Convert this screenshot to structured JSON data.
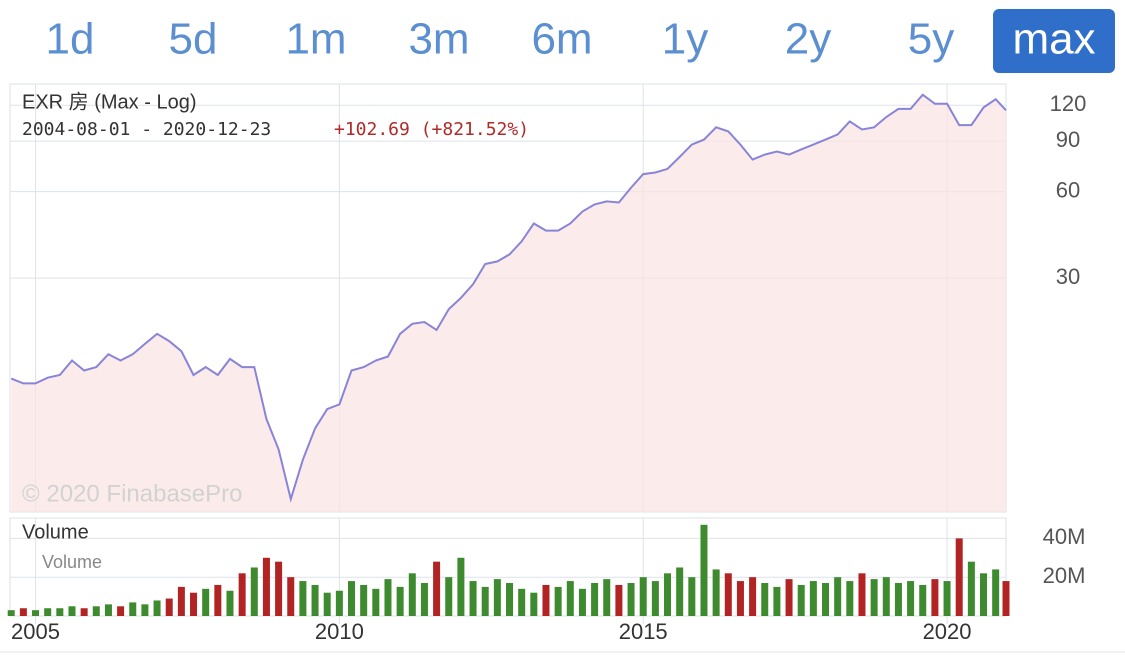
{
  "buttons": [
    {
      "label": "1d"
    },
    {
      "label": "5d"
    },
    {
      "label": "1m"
    },
    {
      "label": "3m"
    },
    {
      "label": "6m"
    },
    {
      "label": "1y"
    },
    {
      "label": "2y"
    },
    {
      "label": "5y"
    },
    {
      "label": "max",
      "active": true
    }
  ],
  "chart_data": [
    {
      "type": "line",
      "title": "EXR 房 (Max - Log)",
      "subtitle": "2004-08-01 - 2020-12-23",
      "change": "+102.69 (+821.52%)",
      "watermark": "© 2020 FinabasePro",
      "x": [
        2004.6,
        2004.8,
        2005.0,
        2005.2,
        2005.4,
        2005.6,
        2005.8,
        2006.0,
        2006.2,
        2006.4,
        2006.6,
        2006.8,
        2007.0,
        2007.2,
        2007.4,
        2007.6,
        2007.8,
        2008.0,
        2008.2,
        2008.4,
        2008.6,
        2008.8,
        2009.0,
        2009.2,
        2009.4,
        2009.6,
        2009.8,
        2010.0,
        2010.2,
        2010.4,
        2010.6,
        2010.8,
        2011.0,
        2011.2,
        2011.4,
        2011.6,
        2011.8,
        2012.0,
        2012.2,
        2012.4,
        2012.6,
        2012.8,
        2013.0,
        2013.2,
        2013.4,
        2013.6,
        2013.8,
        2014.0,
        2014.2,
        2014.4,
        2014.6,
        2014.8,
        2015.0,
        2015.2,
        2015.4,
        2015.6,
        2015.8,
        2016.0,
        2016.2,
        2016.4,
        2016.6,
        2016.8,
        2017.0,
        2017.2,
        2017.4,
        2017.6,
        2017.8,
        2018.0,
        2018.2,
        2018.4,
        2018.6,
        2018.8,
        2019.0,
        2019.2,
        2019.4,
        2019.6,
        2019.8,
        2020.0,
        2020.2,
        2020.4,
        2020.6,
        2020.8,
        2020.97
      ],
      "xlim": [
        2004.58,
        2020.97
      ],
      "xticks": [
        2005,
        2010,
        2015,
        2020
      ],
      "log_scale": true,
      "ylim": [
        4.6,
        140
      ],
      "yticks": [
        120,
        90,
        60,
        30
      ],
      "grid": true,
      "fill_color": "#fbe3e3",
      "series": [
        {
          "color": "#8884d8",
          "values": [
            13.4,
            12.9,
            12.9,
            13.5,
            13.8,
            15.5,
            14.3,
            14.7,
            16.3,
            15.5,
            16.3,
            17.7,
            19.2,
            18.1,
            16.7,
            13.8,
            14.7,
            13.8,
            15.7,
            14.7,
            14.7,
            9.7,
            7.6,
            5.1,
            7.0,
            9.0,
            10.5,
            10.9,
            14.3,
            14.7,
            15.5,
            16.0,
            19.2,
            20.8,
            21.1,
            19.8,
            23.4,
            25.6,
            28.6,
            33.6,
            34.3,
            36.3,
            40.3,
            46.5,
            43.9,
            43.9,
            46.5,
            51.2,
            54.2,
            55.5,
            55.0,
            62.0,
            69.1,
            70.0,
            72.0,
            79.3,
            87.5,
            91.1,
            100.5,
            97.3,
            87.5,
            77.6,
            80.8,
            82.8,
            80.8,
            84.2,
            87.5,
            91.1,
            95.0,
            105.4,
            98.8,
            100.5,
            109.2,
            116.5,
            116.5,
            130.6,
            121.4,
            121.4,
            102.3,
            102.3,
            117.8,
            125.9,
            115.2
          ]
        }
      ]
    },
    {
      "type": "bar",
      "title": "Volume",
      "label": "Volume",
      "up_color": "#3e8a2e",
      "down_color": "#b22424",
      "x": [
        2004.6,
        2004.8,
        2005.0,
        2005.2,
        2005.4,
        2005.6,
        2005.8,
        2006.0,
        2006.2,
        2006.4,
        2006.6,
        2006.8,
        2007.0,
        2007.2,
        2007.4,
        2007.6,
        2007.8,
        2008.0,
        2008.2,
        2008.4,
        2008.6,
        2008.8,
        2009.0,
        2009.2,
        2009.4,
        2009.6,
        2009.8,
        2010.0,
        2010.2,
        2010.4,
        2010.6,
        2010.8,
        2011.0,
        2011.2,
        2011.4,
        2011.6,
        2011.8,
        2012.0,
        2012.2,
        2012.4,
        2012.6,
        2012.8,
        2013.0,
        2013.2,
        2013.4,
        2013.6,
        2013.8,
        2014.0,
        2014.2,
        2014.4,
        2014.6,
        2014.8,
        2015.0,
        2015.2,
        2015.4,
        2015.6,
        2015.8,
        2016.0,
        2016.2,
        2016.4,
        2016.6,
        2016.8,
        2017.0,
        2017.2,
        2017.4,
        2017.6,
        2017.8,
        2018.0,
        2018.2,
        2018.4,
        2018.6,
        2018.8,
        2019.0,
        2019.2,
        2019.4,
        2019.6,
        2019.8,
        2020.0,
        2020.2,
        2020.4,
        2020.6,
        2020.8,
        2020.97
      ],
      "xlim": [
        2004.58,
        2020.97
      ],
      "xticks": [
        2005,
        2010,
        2015,
        2020
      ],
      "ylim": [
        0,
        50.5
      ],
      "yticks": [
        {
          "value": 40,
          "label": "40M"
        },
        {
          "value": 20,
          "label": "20M"
        }
      ],
      "values": [
        3,
        4,
        3,
        4,
        4,
        5,
        4,
        5,
        6,
        5,
        7,
        6,
        8,
        9,
        15,
        12,
        14,
        16,
        13,
        22,
        25,
        30,
        28,
        20,
        18,
        16,
        12,
        13,
        18,
        16,
        14,
        19,
        15,
        22,
        17,
        28,
        20,
        30,
        18,
        15,
        19,
        17,
        14,
        12,
        16,
        15,
        18,
        14,
        17,
        19,
        16,
        17,
        20,
        18,
        22,
        25,
        20,
        47,
        24,
        22,
        18,
        20,
        17,
        15,
        19,
        16,
        18,
        17,
        20,
        18,
        22,
        19,
        20,
        17,
        18,
        16,
        19,
        18,
        40,
        28,
        22,
        24,
        18
      ]
    }
  ]
}
